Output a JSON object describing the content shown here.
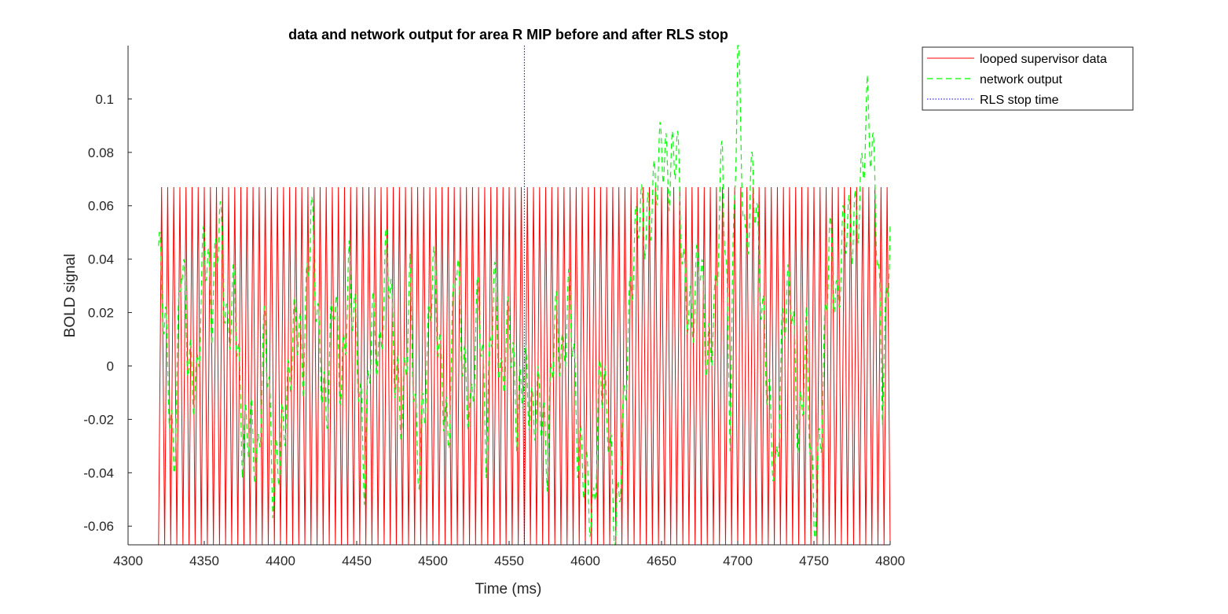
{
  "chart_data": {
    "type": "line",
    "title": "data and network output for area R MIP before and after RLS stop",
    "xlabel": "Time (ms)",
    "ylabel": "BOLD signal",
    "xlim": [
      4300,
      4800
    ],
    "ylim": [
      -0.067,
      0.12
    ],
    "xticks": [
      4300,
      4350,
      4400,
      4450,
      4500,
      4550,
      4600,
      4650,
      4700,
      4750,
      4800
    ],
    "xtick_labels": [
      "4300",
      "4350",
      "4400",
      "4450",
      "4500",
      "4550",
      "4600",
      "4650",
      "4700",
      "4750",
      "4800"
    ],
    "yticks": [
      -0.06,
      -0.04,
      -0.02,
      0,
      0.02,
      0.04,
      0.06,
      0.08,
      0.1
    ],
    "ytick_labels": [
      "-0.06",
      "-0.04",
      "-0.02",
      "0",
      "0.02",
      "0.04",
      "0.06",
      "0.08",
      "0.1"
    ],
    "grid": false,
    "legend_position": "outside-top-right",
    "series": [
      {
        "name": "looped supervisor data",
        "color": "#ff0000",
        "style": "solid",
        "x_start": 4320,
        "x_end": 4800,
        "amplitude": 0.067,
        "period": 4
      },
      {
        "name": "network output",
        "color": "#00ff00",
        "style": "dashed",
        "x": [
          4320,
          4325,
          4330,
          4335,
          4340,
          4345,
          4350,
          4355,
          4360,
          4365,
          4370,
          4375,
          4380,
          4385,
          4390,
          4395,
          4400,
          4405,
          4410,
          4415,
          4420,
          4425,
          4430,
          4435,
          4440,
          4445,
          4450,
          4455,
          4460,
          4465,
          4470,
          4475,
          4480,
          4485,
          4490,
          4495,
          4500,
          4505,
          4510,
          4515,
          4520,
          4525,
          4530,
          4535,
          4540,
          4545,
          4550,
          4555,
          4560,
          4565,
          4570,
          4575,
          4580,
          4585,
          4590,
          4595,
          4600,
          4605,
          4610,
          4615,
          4620,
          4625,
          4630,
          4635,
          4640,
          4645,
          4650,
          4655,
          4660,
          4665,
          4670,
          4675,
          4680,
          4685,
          4690,
          4695,
          4700,
          4705,
          4710,
          4715,
          4720,
          4725,
          4730,
          4735,
          4740,
          4745,
          4750,
          4755,
          4760,
          4765,
          4770,
          4775,
          4780,
          4785,
          4790,
          4795,
          4800
        ],
        "y": [
          0.045,
          0.01,
          -0.04,
          0.045,
          0.0,
          -0.01,
          0.05,
          0.02,
          0.058,
          0.01,
          0.03,
          -0.03,
          -0.02,
          -0.04,
          0.02,
          -0.045,
          -0.03,
          -0.01,
          0.02,
          0.0,
          0.06,
          0.01,
          -0.02,
          0.03,
          -0.01,
          0.035,
          0.01,
          -0.04,
          0.02,
          0.0,
          0.048,
          0.0,
          -0.02,
          0.03,
          -0.04,
          -0.01,
          0.04,
          0.0,
          -0.03,
          0.045,
          0.0,
          -0.02,
          0.03,
          -0.03,
          0.035,
          -0.01,
          0.02,
          -0.02,
          0.0,
          -0.02,
          -0.01,
          -0.035,
          0.02,
          0.0,
          0.03,
          -0.03,
          -0.04,
          -0.06,
          0.0,
          -0.02,
          -0.065,
          -0.02,
          0.03,
          0.06,
          0.05,
          0.065,
          0.083,
          0.07,
          0.085,
          0.03,
          0.015,
          0.045,
          0.0,
          0.02,
          0.082,
          -0.02,
          0.12,
          0.04,
          0.075,
          0.03,
          -0.01,
          -0.045,
          0.02,
          0.03,
          -0.03,
          0.01,
          -0.06,
          -0.02,
          0.05,
          0.02,
          0.055,
          0.05,
          0.06,
          0.097,
          0.07,
          -0.01,
          0.053
        ]
      },
      {
        "name": "RLS stop time",
        "color": "#0000ff",
        "style": "dotted",
        "x": 4560
      }
    ]
  }
}
